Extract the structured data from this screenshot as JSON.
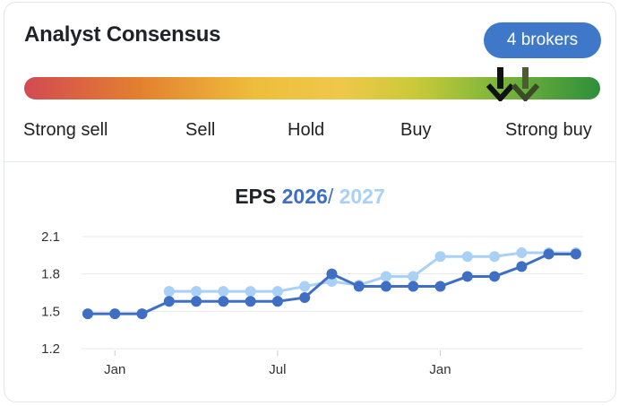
{
  "widget": {
    "title": "Analyst Consensus",
    "brokers_badge": "4 brokers",
    "scale_labels": [
      "Strong sell",
      "Sell",
      "Hold",
      "Buy",
      "Strong buy"
    ],
    "gauge_colors": [
      "#d24a52",
      "#e3802f",
      "#eebe3c",
      "#7db63b",
      "#2e8f3a"
    ],
    "markers": [
      {
        "icon": "arrow-down-icon",
        "color": "#111111"
      },
      {
        "icon": "arrow-down-icon",
        "color": "#5b6b3a"
      }
    ]
  },
  "chart_header": {
    "prefix": "EPS",
    "year1": "2026",
    "separator": "/",
    "year2": "2027"
  },
  "chart_data": {
    "type": "line",
    "yticks": [
      1.2,
      1.5,
      1.8,
      2.1
    ],
    "ylim": [
      1.2,
      2.1
    ],
    "xticks": [
      {
        "label": "Jan",
        "x": 1
      },
      {
        "label": "Jul",
        "x": 7
      },
      {
        "label": "Jan",
        "x": 13
      }
    ],
    "xlim": [
      0,
      18.5
    ],
    "series": [
      {
        "name": "2026",
        "color": "#3f6fc4",
        "x": [
          0,
          1,
          2,
          3,
          4,
          5,
          6,
          7,
          8,
          9,
          10,
          11,
          12,
          13,
          14,
          15,
          16,
          17,
          18
        ],
        "values": [
          1.48,
          1.48,
          1.48,
          1.58,
          1.58,
          1.58,
          1.58,
          1.58,
          1.61,
          1.8,
          1.7,
          1.7,
          1.7,
          1.7,
          1.78,
          1.78,
          1.86,
          1.96,
          1.96
        ]
      },
      {
        "name": "2027",
        "color": "#a9d0f5",
        "x": [
          3,
          4,
          5,
          6,
          7,
          8,
          9,
          10,
          11,
          12,
          13,
          14,
          15,
          16,
          17,
          18
        ],
        "values": [
          1.66,
          1.66,
          1.66,
          1.66,
          1.66,
          1.7,
          1.74,
          1.71,
          1.78,
          1.78,
          1.94,
          1.94,
          1.94,
          1.97,
          1.97,
          1.97
        ]
      }
    ]
  }
}
